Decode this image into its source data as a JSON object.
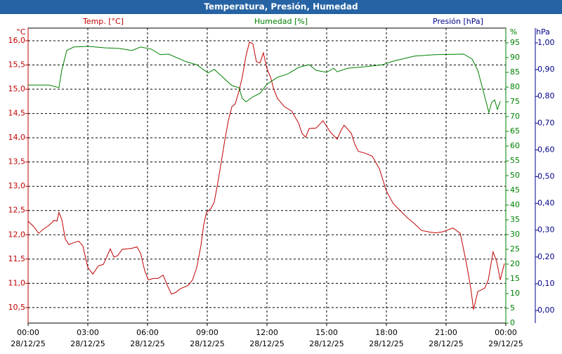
{
  "chart_data": {
    "type": "line",
    "title": "Temperatura, Presión, Humedad",
    "ylabel": "°C",
    "y2label": "%",
    "y3label": "hPa",
    "y3_title": "Presión [hPa]",
    "y3_color": "#00008b",
    "xlim": [
      0,
      24
    ],
    "xticks": [
      {
        "value": 0,
        "label": "00:00"
      },
      {
        "value": 3,
        "label": "03:00"
      },
      {
        "value": 6,
        "label": "06:00"
      },
      {
        "value": 9,
        "label": "09:00"
      },
      {
        "value": 12,
        "label": "12:00"
      },
      {
        "value": 15,
        "label": "15:00"
      },
      {
        "value": 18,
        "label": "18:00"
      },
      {
        "value": 21,
        "label": "21:00"
      },
      {
        "value": 24,
        "label": "00:00"
      }
    ],
    "xtick_dates": [
      "28/12/25",
      "28/12/25",
      "28/12/25",
      "28/12/25",
      "28/12/25",
      "28/12/25",
      "28/12/25",
      "28/12/25",
      "29/12/25"
    ],
    "ylim": [
      10.18,
      16.26
    ],
    "yticks": [
      {
        "value": 10.5,
        "label": "10,5"
      },
      {
        "value": 11,
        "label": "11,0"
      },
      {
        "value": 11.5,
        "label": "11,5"
      },
      {
        "value": 12,
        "label": "12,0"
      },
      {
        "value": 12.5,
        "label": "12,5"
      },
      {
        "value": 13,
        "label": "13,0"
      },
      {
        "value": 13.5,
        "label": "13,5"
      },
      {
        "value": 14,
        "label": "14,0"
      },
      {
        "value": 14.5,
        "label": "14,5"
      },
      {
        "value": 15,
        "label": "15,0"
      },
      {
        "value": 15.5,
        "label": "15,5"
      },
      {
        "value": 16,
        "label": "16,0"
      }
    ],
    "y2lim": [
      0,
      100
    ],
    "y2ticks": [
      0,
      5,
      10,
      15,
      20,
      25,
      30,
      35,
      40,
      45,
      50,
      55,
      60,
      65,
      70,
      75,
      80,
      85,
      90,
      95
    ],
    "y3lim": [
      -0.047,
      1.055
    ],
    "y3ticks": [
      {
        "value": 0,
        "label": "0,00"
      },
      {
        "value": 0.1,
        "label": "0,10"
      },
      {
        "value": 0.2,
        "label": "0,20"
      },
      {
        "value": 0.3,
        "label": "0,30"
      },
      {
        "value": 0.4,
        "label": "0,40"
      },
      {
        "value": 0.5,
        "label": "0,50"
      },
      {
        "value": 0.6,
        "label": "0,60"
      },
      {
        "value": 0.7,
        "label": "0,70"
      },
      {
        "value": 0.8,
        "label": "0,80"
      },
      {
        "value": 0.9,
        "label": "0,90"
      },
      {
        "value": 1,
        "label": "1,00"
      }
    ],
    "grid": true,
    "series": [
      {
        "name": "Temp. [°C]",
        "color": "#c00000",
        "x": [
          0,
          0.28,
          0.53,
          0.78,
          1.06,
          1.31,
          1.45,
          1.55,
          1.69,
          1.87,
          2.05,
          2.3,
          2.54,
          2.75,
          3.0,
          3.25,
          3.53,
          3.78,
          3.96,
          4.13,
          4.31,
          4.5,
          4.73,
          5.2,
          5.47,
          5.65,
          5.86,
          6.04,
          6.3,
          6.53,
          6.78,
          6.99,
          7.2,
          7.4,
          7.62,
          8.05,
          8.26,
          8.47,
          8.68,
          8.82,
          8.96,
          9.18,
          9.35,
          9.53,
          9.71,
          9.88,
          10.06,
          10.24,
          10.41,
          10.59,
          10.76,
          10.94,
          11.12,
          11.29,
          11.47,
          11.65,
          11.82,
          12.0,
          12.18,
          12.35,
          12.53,
          12.88,
          13.24,
          13.59,
          13.76,
          13.94,
          14.12,
          14.47,
          14.82,
          15.18,
          15.53,
          15.71,
          15.88,
          16.24,
          16.41,
          16.59,
          16.94,
          17.29,
          17.65,
          18.0,
          18.35,
          18.71,
          19.06,
          19.41,
          19.76,
          20.12,
          20.47,
          20.82,
          21.35,
          21.71,
          21.88,
          22.06,
          22.24,
          22.38,
          22.59,
          22.94,
          23.12,
          23.36,
          23.54,
          23.72,
          23.93
        ],
        "values": [
          12.28,
          12.17,
          12.03,
          12.12,
          12.2,
          12.3,
          12.28,
          12.46,
          12.32,
          11.91,
          11.8,
          11.84,
          11.87,
          11.77,
          11.33,
          11.19,
          11.36,
          11.39,
          11.55,
          11.71,
          11.54,
          11.57,
          11.7,
          11.72,
          11.75,
          11.62,
          11.26,
          11.07,
          11.1,
          11.1,
          11.17,
          10.96,
          10.78,
          10.81,
          10.88,
          10.96,
          11.07,
          11.32,
          11.77,
          12.2,
          12.46,
          12.54,
          12.67,
          13.07,
          13.51,
          13.94,
          14.35,
          14.64,
          14.7,
          14.96,
          15.25,
          15.68,
          15.97,
          15.94,
          15.57,
          15.54,
          15.75,
          15.42,
          15.25,
          14.99,
          14.81,
          14.64,
          14.55,
          14.3,
          14.09,
          14.01,
          14.19,
          14.2,
          14.35,
          14.12,
          13.97,
          14.14,
          14.26,
          14.09,
          13.87,
          13.72,
          13.68,
          13.62,
          13.36,
          12.9,
          12.64,
          12.49,
          12.35,
          12.23,
          12.09,
          12.06,
          12.04,
          12.06,
          12.14,
          12.03,
          11.7,
          11.33,
          10.9,
          10.46,
          10.83,
          10.9,
          11.07,
          11.65,
          11.45,
          11.07,
          11.41
        ]
      },
      {
        "name": "Humedad [%]",
        "color": "#008000",
        "axis": "y2",
        "x": [
          0,
          1.06,
          1.55,
          1.69,
          1.94,
          2.29,
          3.0,
          3.88,
          4.59,
          5.22,
          5.65,
          6.18,
          6.64,
          7.06,
          7.94,
          8.47,
          9.04,
          9.35,
          9.71,
          10.24,
          10.59,
          10.76,
          10.94,
          11.29,
          11.65,
          12.0,
          12.53,
          13.06,
          13.59,
          14.12,
          14.47,
          15.0,
          15.35,
          15.53,
          16.06,
          16.94,
          17.82,
          18.35,
          19.41,
          20.47,
          21.88,
          22.31,
          22.59,
          22.87,
          23.15,
          23.29,
          23.44,
          23.58,
          23.72
        ],
        "values": [
          80.7,
          80.7,
          79.8,
          85.7,
          92.4,
          93.6,
          93.8,
          93.3,
          93.1,
          92.4,
          93.6,
          92.9,
          91,
          91.2,
          88.6,
          87.6,
          84.8,
          86,
          83.8,
          80.5,
          79.8,
          76.2,
          75,
          76.7,
          77.9,
          81,
          83.3,
          84.5,
          86.7,
          87.6,
          85.7,
          85,
          86.4,
          85.2,
          86.4,
          86.9,
          87.6,
          88.8,
          90.5,
          91,
          91.2,
          89.5,
          85.7,
          78.6,
          71.4,
          74.8,
          75.7,
          72.4,
          75.2
        ]
      }
    ]
  }
}
